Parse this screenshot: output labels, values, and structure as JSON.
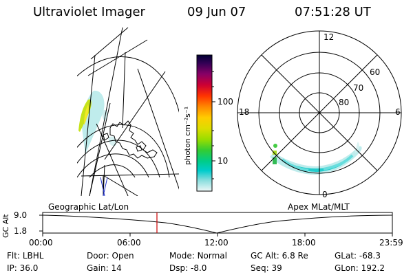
{
  "header": {
    "instrument": "Ultraviolet Imager",
    "date": "09 Jun 07",
    "time": "07:51:28 UT"
  },
  "colorbar": {
    "unit_label": "photon cm⁻²s⁻¹",
    "ticks": [
      "100",
      "10"
    ],
    "colors": [
      "#000033",
      "#330055",
      "#550077",
      "#880066",
      "#cc0033",
      "#ff3300",
      "#ff8800",
      "#ffcc00",
      "#dddd00",
      "#99dd00",
      "#33cc33",
      "#00cc88",
      "#00cccc",
      "#66dddd",
      "#aaeeee",
      "#e8f6f6"
    ]
  },
  "polar_plot": {
    "mlt_labels": [
      "12",
      "18",
      "6",
      "0"
    ],
    "lat_labels": [
      "60",
      "70",
      "80"
    ]
  },
  "altitude_track": {
    "y_label": "GC Alt",
    "y_ticks": [
      "9.0",
      "1.8"
    ],
    "left_caption": "Geographic Lat/Lon",
    "right_caption": "Apex MLat/MLT",
    "time_ticks": [
      "00:00",
      "06:00",
      "12:00",
      "18:00",
      "23:59"
    ],
    "current_time_fraction": 0.327,
    "marker_color": "#cc0000"
  },
  "info": {
    "row1": [
      {
        "label": "Flt:",
        "value": "LBHL"
      },
      {
        "label": "Door:",
        "value": "Open"
      },
      {
        "label": "Mode:",
        "value": "Normal"
      },
      {
        "label": "GC Alt:",
        "value": "6.8 Re"
      },
      {
        "label": "GLat:",
        "value": "-68.3"
      }
    ],
    "row2": [
      {
        "label": "IP:",
        "value": "36.0"
      },
      {
        "label": "Gain:",
        "value": "14"
      },
      {
        "label": "Dsp:",
        "value": "-8.0"
      },
      {
        "label": "Seq:",
        "value": "39"
      },
      {
        "label": "GLon:",
        "value": "192.2"
      }
    ]
  }
}
